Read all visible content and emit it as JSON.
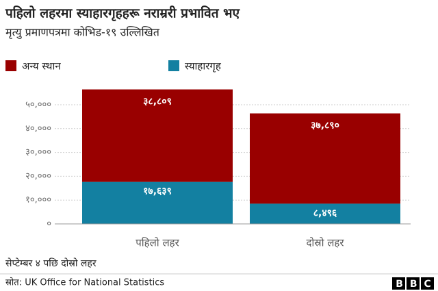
{
  "chart_data": {
    "type": "stacked_bar",
    "title": "पहिलो लहरमा स्याहारगृहहरू नराम्ररी प्रभावित भए",
    "subtitle": "मृत्यु प्रमाणपत्रमा कोभिड-१९ उल्लिखित",
    "categories": [
      "पहिलो लहर",
      "दोस्रो लहर"
    ],
    "series": [
      {
        "name": "अन्य स्थान",
        "color": "#990000",
        "values": [
          38809,
          37890
        ],
        "value_labels": [
          "३८,८०९",
          "३७,८९०"
        ]
      },
      {
        "name": "स्याहारगृह",
        "color": "#1380a1",
        "values": [
          17639,
          8496
        ],
        "value_labels": [
          "१७,६३९",
          "८,४९६"
        ]
      }
    ],
    "ylim": [
      0,
      57000
    ],
    "yticks": [
      {
        "value": 0,
        "label": "०"
      },
      {
        "value": 10000,
        "label": "१०,०००"
      },
      {
        "value": 20000,
        "label": "२०,०००"
      },
      {
        "value": 30000,
        "label": "३०,०००"
      },
      {
        "value": 40000,
        "label": "४०,०००"
      },
      {
        "value": 50000,
        "label": "५०,०००"
      }
    ],
    "grid": true,
    "note": "सेप्टेम्बर ४ पछि दोस्रो लहर",
    "source": "स्रोत: UK Office for National Statistics",
    "logo": "BBC"
  }
}
